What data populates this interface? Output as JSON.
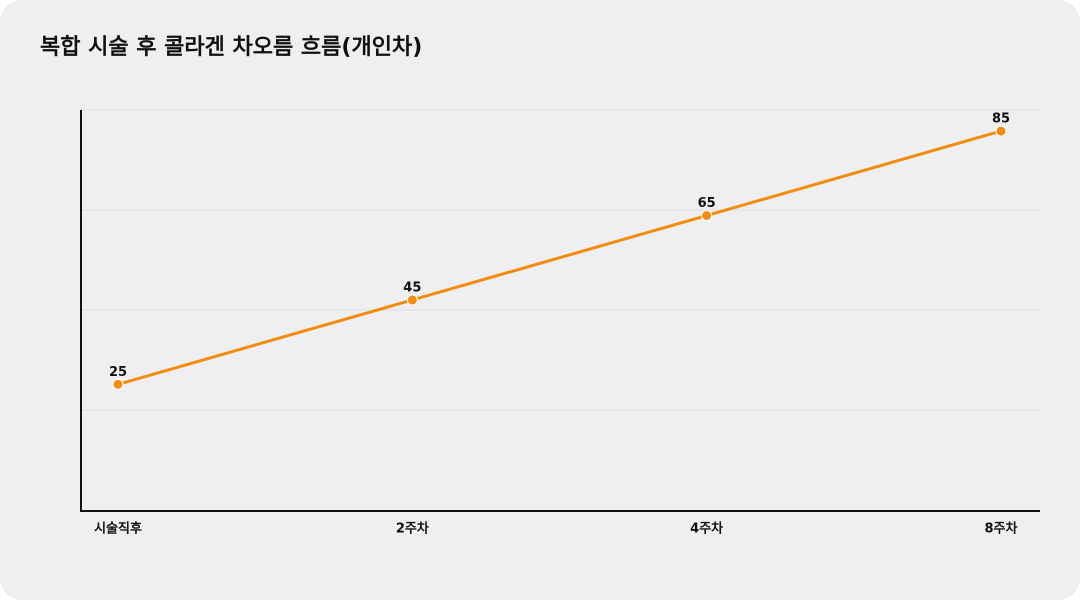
{
  "chart_data": {
    "type": "line",
    "title": "복합 시술 후 콜라겐 차오름 흐름(개인차)",
    "categories": [
      "시술직후",
      "2주차",
      "4주차",
      "8주차"
    ],
    "series": [
      {
        "color": "#f28c0f",
        "values": [
          25,
          45,
          65,
          85
        ]
      }
    ],
    "ylim": [
      -5,
      90
    ]
  }
}
